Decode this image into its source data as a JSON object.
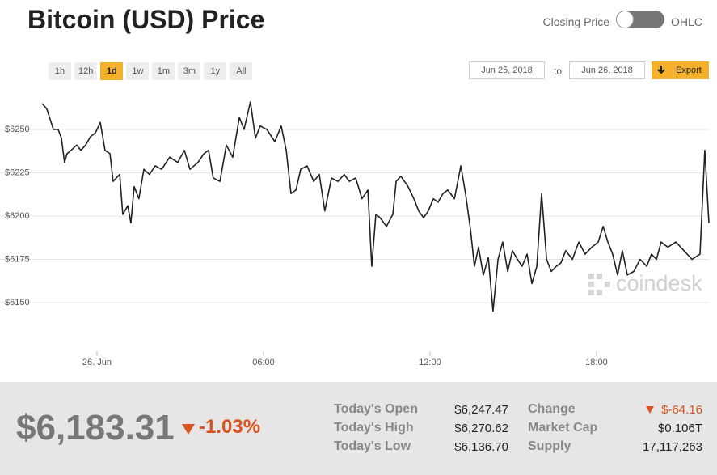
{
  "header": {
    "title": "Bitcoin (USD) Price",
    "toggle_left": "Closing Price",
    "toggle_right": "OHLC"
  },
  "range_buttons": [
    "1h",
    "12h",
    "1d",
    "1w",
    "1m",
    "3m",
    "1y",
    "All"
  ],
  "active_range": "1d",
  "date_range": {
    "from": "Jun 25, 2018",
    "to_label": "to",
    "to": "Jun 26, 2018",
    "export": "Export"
  },
  "chart_data": {
    "type": "line",
    "color": "#222222",
    "x": [
      -1.98,
      -1.81,
      -1.57,
      -1.4,
      -1.28,
      -1.17,
      -1.08,
      -0.93,
      -0.73,
      -0.58,
      -0.41,
      -0.23,
      -0.06,
      0.12,
      0.29,
      0.47,
      0.58,
      0.82,
      0.93,
      1.11,
      1.22,
      1.34,
      1.51,
      1.69,
      1.89,
      2.1,
      2.33,
      2.62,
      2.91,
      3.15,
      3.35,
      3.64,
      3.85,
      4.02,
      4.19,
      4.43,
      4.66,
      4.89,
      5.13,
      5.3,
      5.53,
      5.71,
      5.88,
      6.12,
      6.41,
      6.64,
      6.82,
      6.99,
      7.17,
      7.34,
      7.57,
      7.81,
      8.01,
      8.21,
      8.45,
      8.68,
      8.91,
      9.09,
      9.32,
      9.55,
      9.76,
      9.9,
      10.05,
      10.2,
      10.43,
      10.66,
      10.78,
      10.95,
      11.21,
      11.42,
      11.59,
      11.77,
      11.94,
      12.12,
      12.29,
      12.47,
      12.64,
      12.88,
      13.11,
      13.28,
      13.46,
      13.6,
      13.75,
      13.92,
      14.1,
      14.27,
      14.45,
      14.62,
      14.8,
      14.97,
      15.15,
      15.32,
      15.5,
      15.67,
      15.85,
      16.02,
      16.2,
      16.37,
      16.55,
      16.72,
      16.89,
      17.13,
      17.36,
      17.59,
      17.83,
      18.06,
      18.24,
      18.41,
      18.58,
      18.76,
      18.93,
      19.11,
      19.34,
      19.57,
      19.81,
      19.98,
      20.16,
      20.33,
      20.57,
      20.86,
      21.15,
      21.44,
      21.73,
      21.9,
      22.05
    ],
    "values": [
      6265,
      6262,
      6250,
      6250,
      6245,
      6231,
      6236,
      6238,
      6241,
      6238,
      6241,
      6246,
      6248,
      6254,
      6238,
      6236,
      6220,
      6224,
      6201,
      6206,
      6196,
      6217,
      6210,
      6227,
      6224,
      6229,
      6227,
      6234,
      6231,
      6238,
      6227,
      6231,
      6236,
      6238,
      6222,
      6220,
      6241,
      6234,
      6257,
      6250,
      6266,
      6245,
      6252,
      6250,
      6243,
      6252,
      6238,
      6213,
      6215,
      6227,
      6229,
      6220,
      6224,
      6203,
      6222,
      6220,
      6224,
      6220,
      6222,
      6210,
      6215,
      6171,
      6201,
      6199,
      6194,
      6201,
      6220,
      6223,
      6217,
      6210,
      6203,
      6199,
      6203,
      6210,
      6208,
      6213,
      6215,
      6210,
      6229,
      6213,
      6192,
      6171,
      6182,
      6166,
      6176,
      6145,
      6175,
      6185,
      6168,
      6180,
      6175,
      6171,
      6178,
      6161,
      6171,
      6213,
      6175,
      6168,
      6171,
      6173,
      6180,
      6175,
      6185,
      6178,
      6182,
      6185,
      6194,
      6185,
      6178,
      6166,
      6180,
      6166,
      6168,
      6175,
      6171,
      6178,
      6175,
      6185,
      6182,
      6185,
      6180,
      6175,
      6178,
      6238,
      6196
    ],
    "xlim": [
      -1.98,
      22.05
    ],
    "xticks": [
      {
        "value": 0,
        "label": "26. Jun"
      },
      {
        "value": 6,
        "label": "06:00"
      },
      {
        "value": 12,
        "label": "12:00"
      },
      {
        "value": 18,
        "label": "18:00"
      }
    ],
    "ylim": [
      6125,
      6275
    ],
    "yticks": [
      {
        "value": 6150,
        "label": "$6150"
      },
      {
        "value": 6175,
        "label": "$6175"
      },
      {
        "value": 6200,
        "label": "$6200"
      },
      {
        "value": 6225,
        "label": "$6225"
      },
      {
        "value": 6250,
        "label": "$6250"
      }
    ],
    "grid": true,
    "watermark": "coindesk"
  },
  "summary": {
    "price": "$6,183.31",
    "change_percent": "-1.03%",
    "left_stats": [
      {
        "label": "Today's Open",
        "value": "$6,247.47"
      },
      {
        "label": "Today's High",
        "value": "$6,270.62"
      },
      {
        "label": "Today's Low",
        "value": "$6,136.70"
      }
    ],
    "right_stats": [
      {
        "label": "Change",
        "value": "$-64.16"
      },
      {
        "label": "Market Cap",
        "value": "$0.106T"
      },
      {
        "label": "Supply",
        "value": "17,117,263"
      }
    ]
  }
}
